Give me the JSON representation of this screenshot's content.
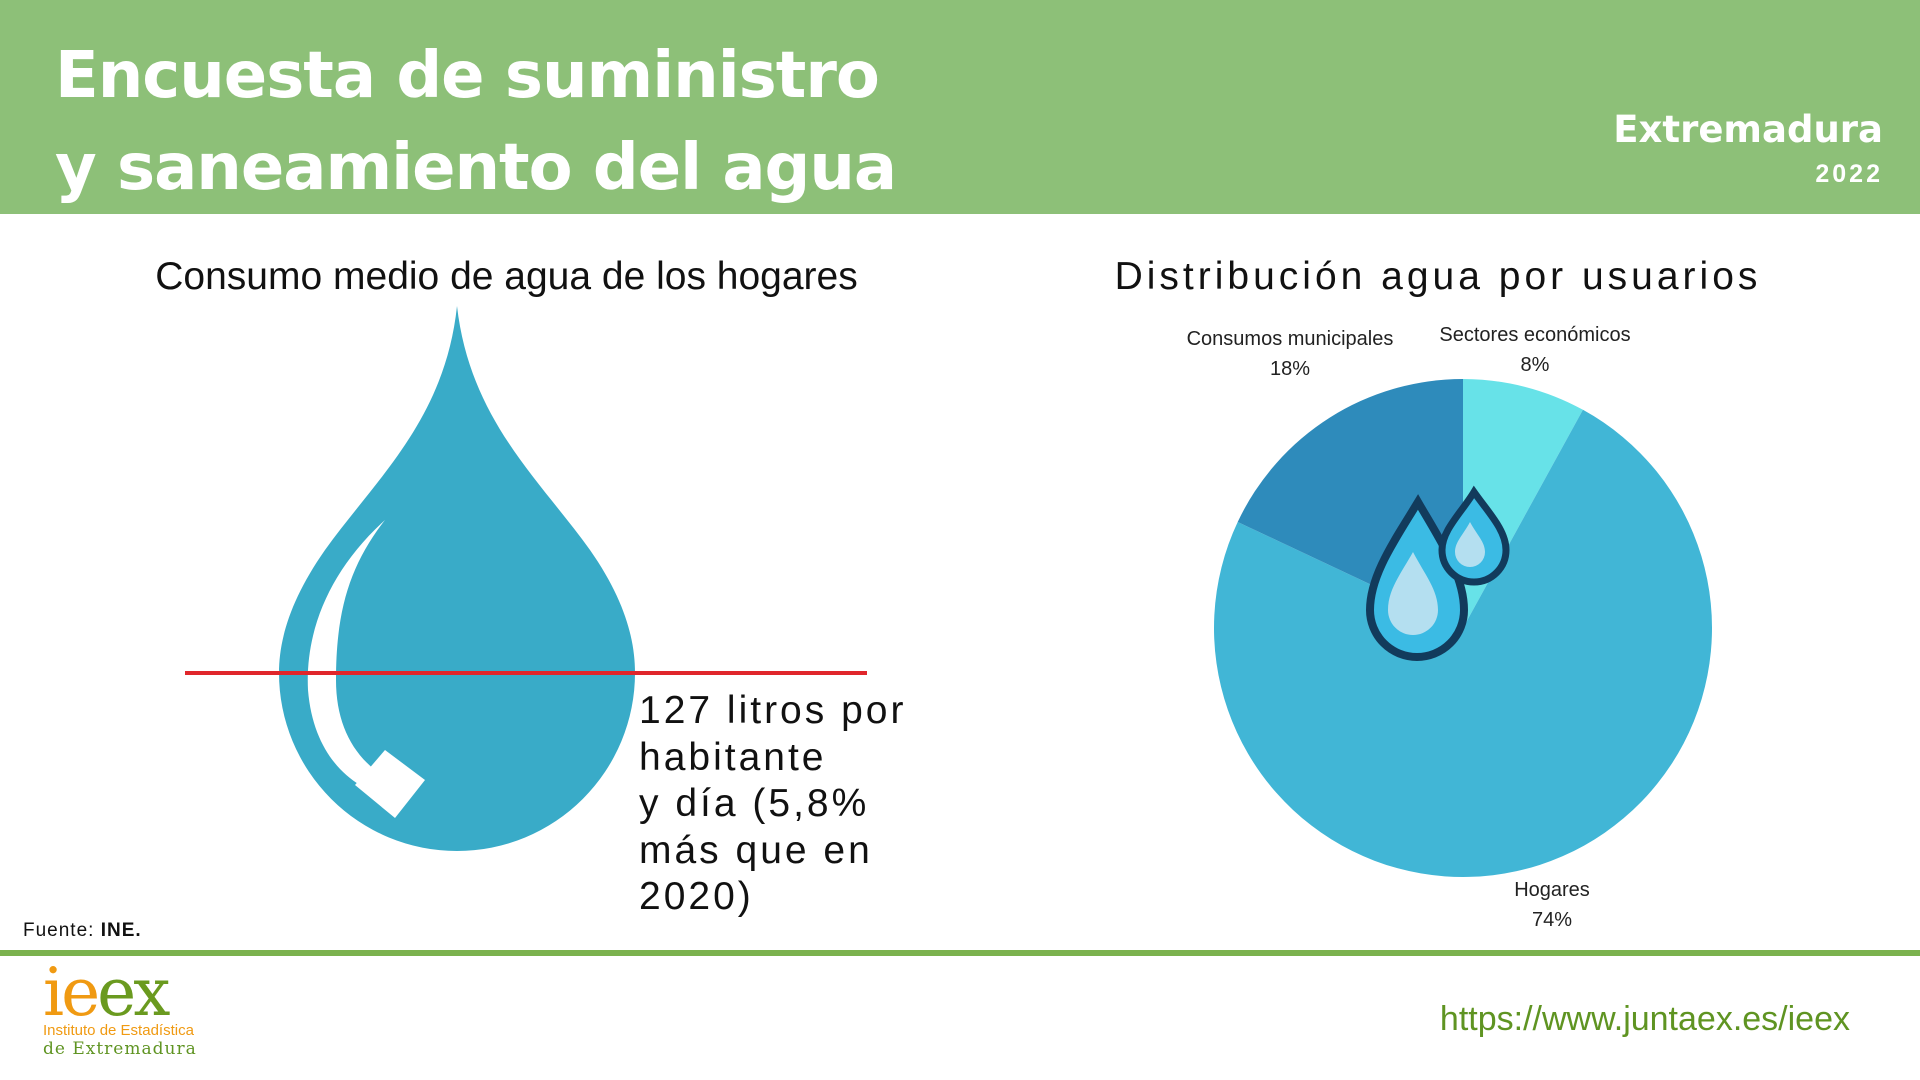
{
  "header": {
    "title_line1": "Encuesta de suministro",
    "title_line2": "y saneamiento del agua",
    "region": "Extremadura",
    "year": "2022"
  },
  "left": {
    "title": "Consumo medio de agua de los hogares",
    "stat_lines": [
      "127 litros por",
      "habitante",
      "y día (5,8%",
      "más que en",
      "2020)"
    ]
  },
  "right": {
    "title": "Distribución agua por usuarios"
  },
  "chart_data": {
    "type": "pie",
    "title": "Distribución agua por usuarios",
    "start": "top",
    "direction": "clockwise",
    "slices": [
      {
        "label": "Sectores económicos",
        "value": 8,
        "display": "8%",
        "color": "#67e2e8"
      },
      {
        "label": "Hogares",
        "value": 74,
        "display": "74%",
        "color": "#41b6d6"
      },
      {
        "label": "Consumos municipales",
        "value": 18,
        "display": "18%",
        "color": "#2e8bbb"
      }
    ]
  },
  "footer": {
    "source_label": "Fuente:",
    "source": "INE.",
    "url": "https://www.juntaex.es/ieex",
    "logo": {
      "name": "ieex",
      "line1": "Instituto de Estadística",
      "line2": "de Extremadura"
    }
  }
}
